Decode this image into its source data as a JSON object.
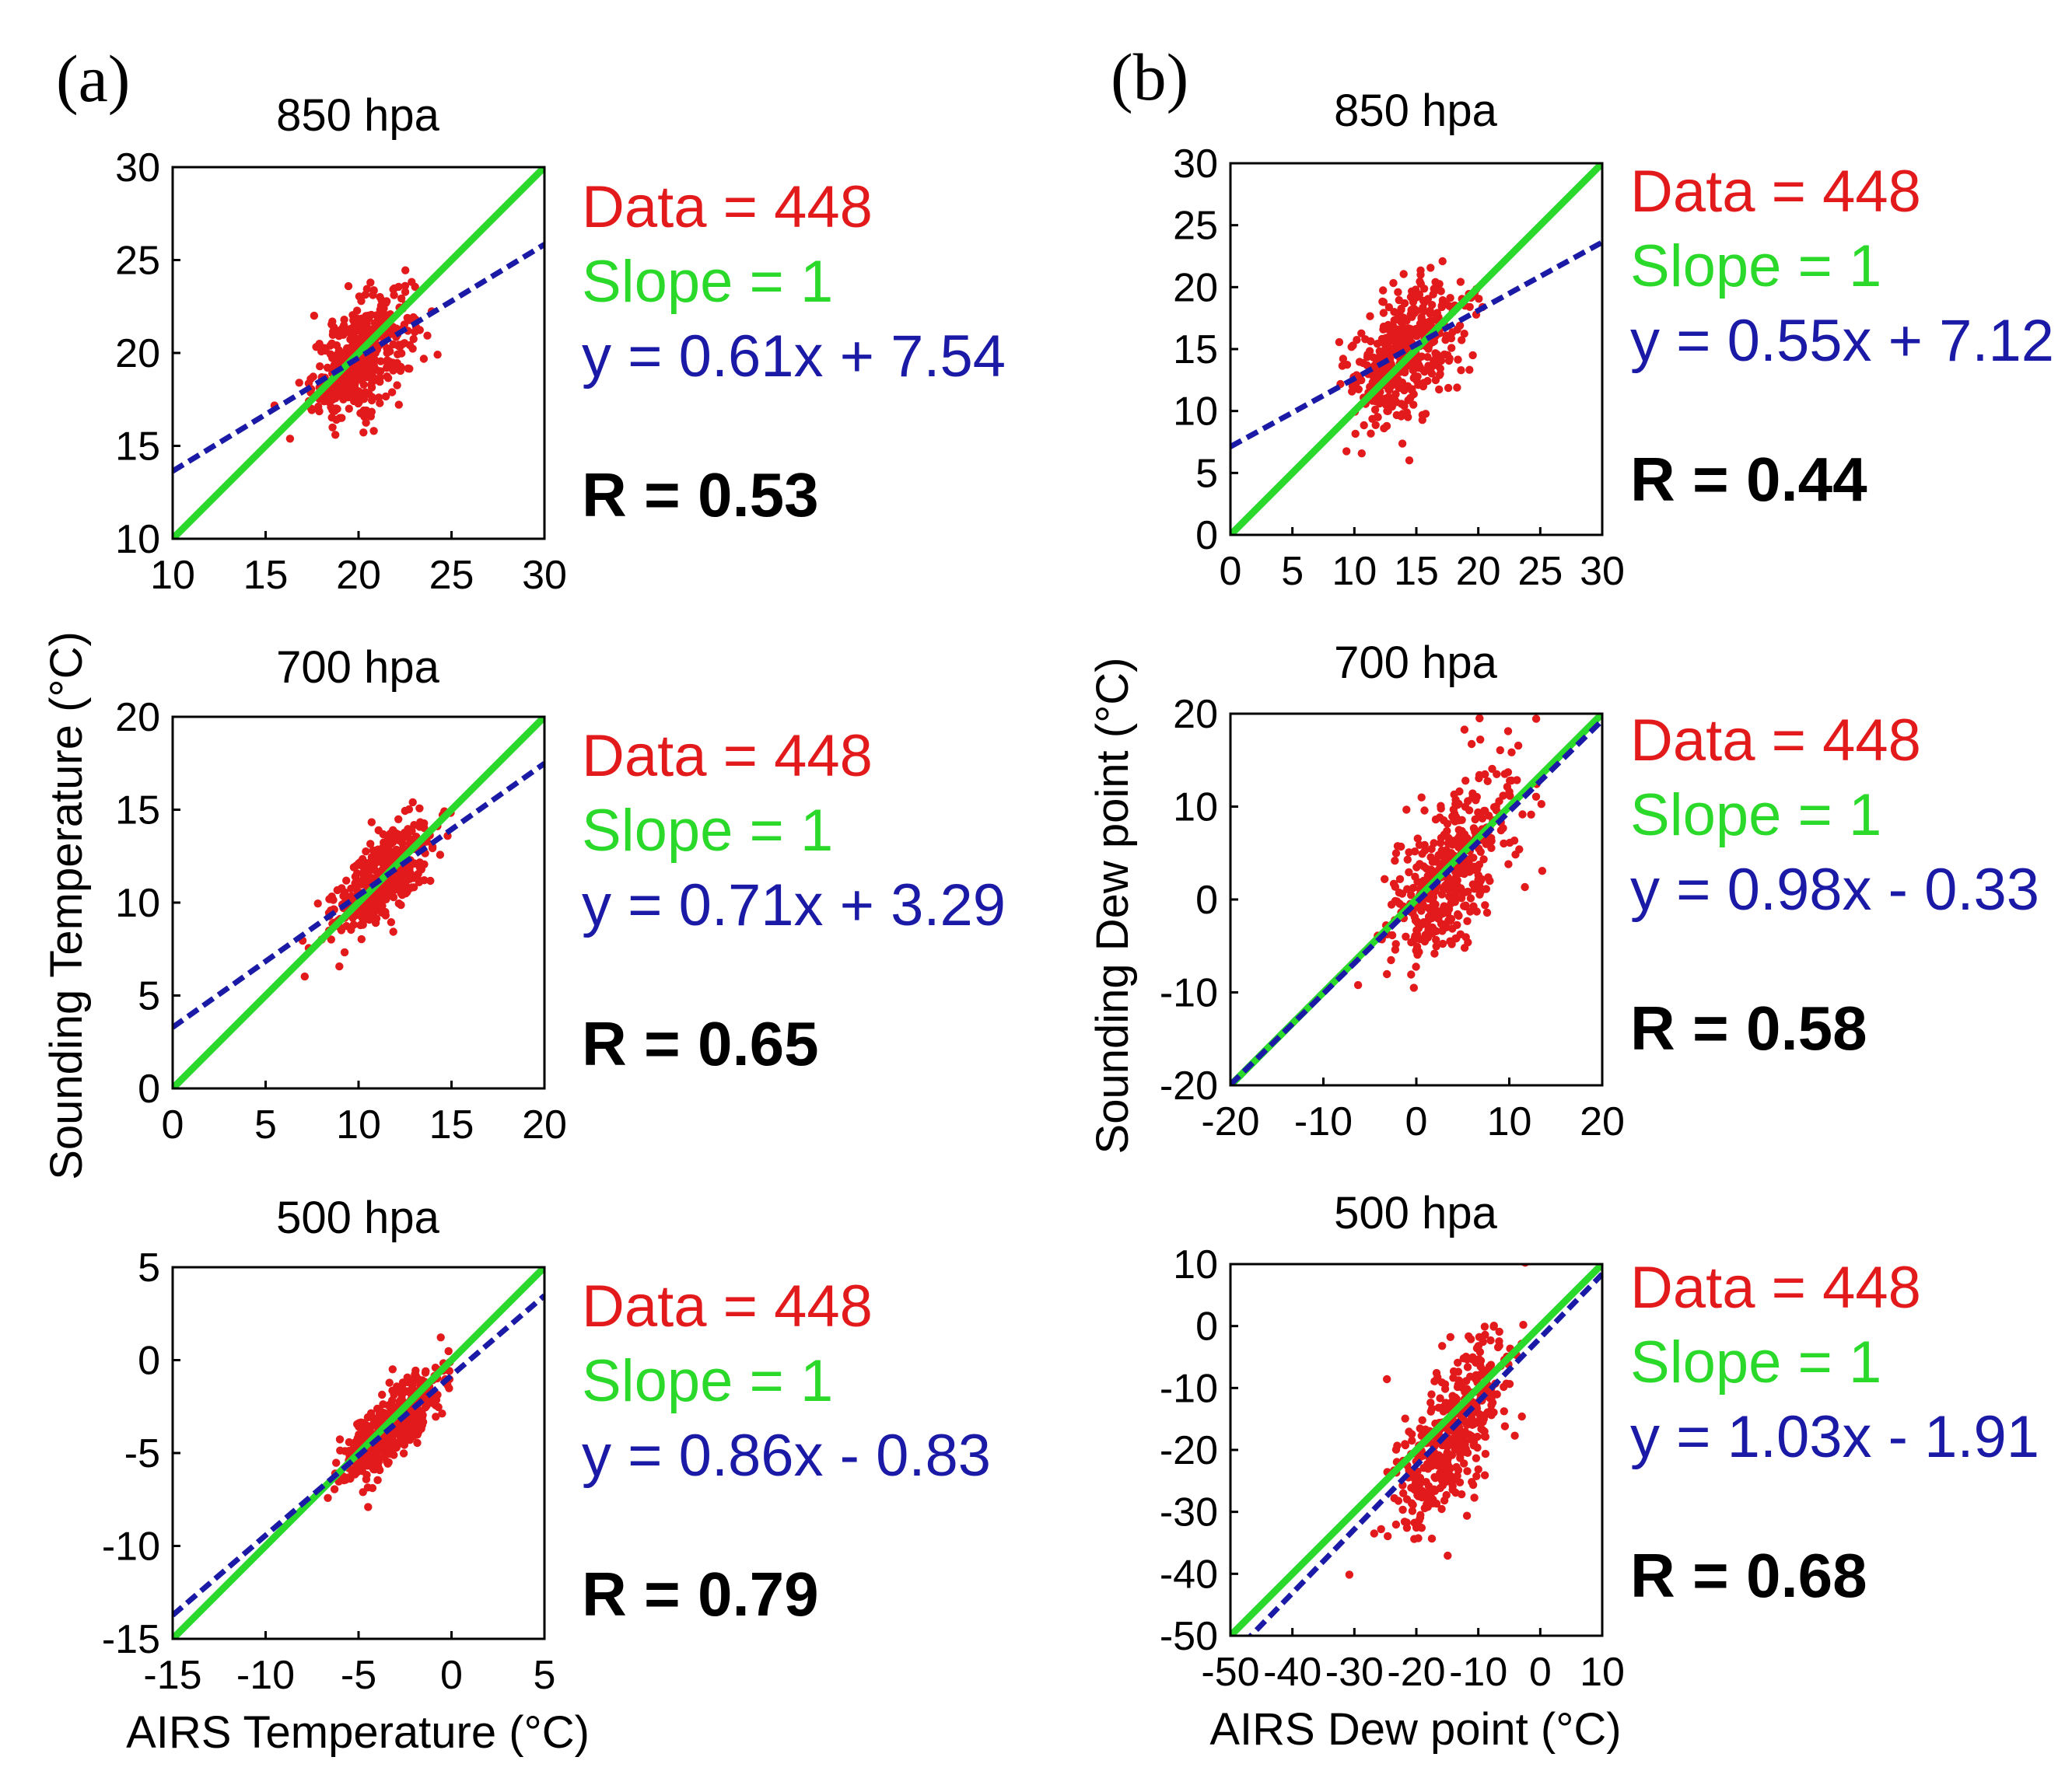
{
  "colors": {
    "points": "#e31a1c",
    "slope_line": "#2bd92b",
    "fit_line": "#1a1aa6",
    "axis": "#000000",
    "data_text": "#e31a1c",
    "slope_text": "#2bd92b",
    "fit_text": "#1a1aa6"
  },
  "chart_data": [
    {
      "id": "a-850",
      "column": "a",
      "type": "scatter",
      "panel_label": "(a)",
      "title": "850 hpa",
      "xlim": [
        10,
        30
      ],
      "ylim": [
        10,
        30
      ],
      "xticks": [
        "10",
        "15",
        "20",
        "25",
        "30"
      ],
      "yticks": [
        "10",
        "15",
        "20",
        "25",
        "30"
      ],
      "tick_values": [
        10,
        15,
        20,
        25,
        30
      ],
      "n_points": 448,
      "cloud": {
        "cx": 20.2,
        "cy": 19.8,
        "sx": 1.35,
        "sy": 1.7,
        "corr": 0.53
      },
      "fit": {
        "slope": 0.61,
        "intercept": 7.54
      },
      "data_text": "Data = 448",
      "slope_text": "Slope = 1",
      "fit_text": "y = 0.61x + 7.54",
      "r_text": "R = 0.53"
    },
    {
      "id": "a-700",
      "column": "a",
      "type": "scatter",
      "title": "700 hpa",
      "xlim": [
        0,
        20
      ],
      "ylim": [
        0,
        20
      ],
      "xticks": [
        "0",
        "5",
        "10",
        "15",
        "20"
      ],
      "yticks": [
        "0",
        "5",
        "10",
        "15",
        "20"
      ],
      "tick_values": [
        0,
        5,
        10,
        15,
        20
      ],
      "n_points": 448,
      "cloud": {
        "cx": 11.3,
        "cy": 11.4,
        "sx": 1.3,
        "sy": 1.4,
        "corr": 0.65
      },
      "fit": {
        "slope": 0.71,
        "intercept": 3.29
      },
      "data_text": "Data = 448",
      "slope_text": "Slope = 1",
      "fit_text": "y = 0.71x + 3.29",
      "r_text": "R = 0.65"
    },
    {
      "id": "a-500",
      "column": "a",
      "type": "scatter",
      "title": "500 hpa",
      "xlim": [
        -15,
        5
      ],
      "ylim": [
        -15,
        5
      ],
      "xticks": [
        "-15",
        "-10",
        "-5",
        "0",
        "5"
      ],
      "yticks": [
        "-15",
        "-10",
        "-5",
        "0",
        "5"
      ],
      "tick_values": [
        -15,
        -10,
        -5,
        0,
        5
      ],
      "n_points": 448,
      "cloud": {
        "cx": -3.1,
        "cy": -3.5,
        "sx": 1.35,
        "sy": 1.55,
        "corr": 0.79
      },
      "fit": {
        "slope": 0.86,
        "intercept": -0.83
      },
      "data_text": "Data = 448",
      "slope_text": "Slope = 1",
      "fit_text": "y = 0.86x - 0.83",
      "r_text": "R = 0.79"
    },
    {
      "id": "b-850",
      "column": "b",
      "type": "scatter",
      "panel_label": "(b)",
      "title": "850 hpa",
      "xlim": [
        0,
        30
      ],
      "ylim": [
        0,
        30
      ],
      "xticks": [
        "0",
        "5",
        "10",
        "15",
        "20",
        "25",
        "30"
      ],
      "yticks": [
        "0",
        "5",
        "10",
        "15",
        "20",
        "25",
        "30"
      ],
      "tick_values": [
        0,
        5,
        10,
        15,
        20,
        25,
        30
      ],
      "n_points": 448,
      "cloud": {
        "cx": 14.2,
        "cy": 14.6,
        "sx": 2.2,
        "sy": 2.9,
        "corr": 0.44
      },
      "fit": {
        "slope": 0.55,
        "intercept": 7.12
      },
      "data_text": "Data = 448",
      "slope_text": "Slope = 1",
      "fit_text": "y = 0.55x + 7.12",
      "r_text": "R = 0.44"
    },
    {
      "id": "b-700",
      "column": "b",
      "type": "scatter",
      "title": "700 hpa",
      "xlim": [
        -20,
        20
      ],
      "ylim": [
        -20,
        20
      ],
      "xticks": [
        "-20",
        "-10",
        "0",
        "10",
        "20"
      ],
      "yticks": [
        "-20",
        "-10",
        "0",
        "10",
        "20"
      ],
      "tick_values": [
        -20,
        -10,
        0,
        10,
        20
      ],
      "n_points": 448,
      "cloud": {
        "cx": 3.5,
        "cy": 3.2,
        "sx": 3.4,
        "sy": 5.2,
        "corr": 0.58
      },
      "fit": {
        "slope": 0.98,
        "intercept": -0.33
      },
      "data_text": "Data = 448",
      "slope_text": "Slope = 1",
      "fit_text": "y = 0.98x - 0.33",
      "r_text": "R = 0.58"
    },
    {
      "id": "b-500",
      "column": "b",
      "type": "scatter",
      "title": "500 hpa",
      "xlim": [
        -50,
        10
      ],
      "ylim": [
        -50,
        10
      ],
      "xticks": [
        "-50",
        "-40",
        "-30",
        "-20",
        "-10",
        "0",
        "10"
      ],
      "yticks": [
        "-50",
        "-40",
        "-30",
        "-20",
        "-10",
        "0",
        "10"
      ],
      "tick_values": [
        -50,
        -40,
        -30,
        -20,
        -10,
        0,
        10
      ],
      "n_points": 448,
      "cloud": {
        "cx": -14.5,
        "cy": -17.0,
        "sx": 4.6,
        "sy": 7.5,
        "corr": 0.68
      },
      "fit": {
        "slope": 1.03,
        "intercept": -1.91
      },
      "data_text": "Data = 448",
      "slope_text": "Slope = 1",
      "fit_text": "y = 1.03x - 1.91",
      "r_text": "R = 0.68"
    }
  ],
  "columns": {
    "a": {
      "ylabel": "Sounding Temperature (°C)",
      "xlabel": "AIRS Temperature (°C)"
    },
    "b": {
      "ylabel": "Sounding Dew point (°C)",
      "xlabel": "AIRS Dew point (°C)"
    }
  }
}
